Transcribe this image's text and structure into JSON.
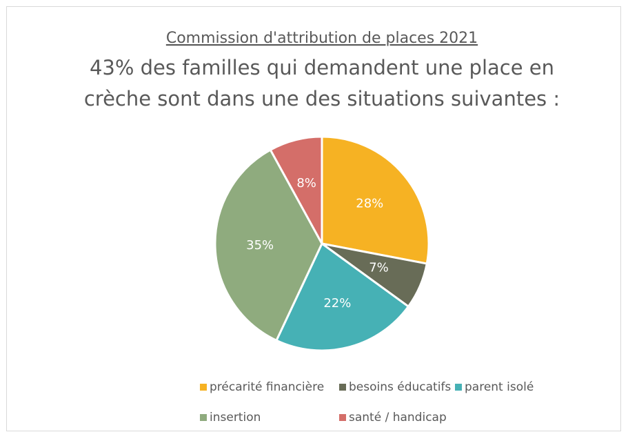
{
  "chart_data": {
    "type": "pie",
    "title": "Commission d'attribution de places 2021",
    "subtitle": [
      "43% des familles qui demandent une place en",
      "crèche sont dans une des situations suivantes :"
    ],
    "categories": [
      "précarité financière",
      "besoins éducatifs",
      "parent isolé",
      "insertion",
      "santé / handicap"
    ],
    "values": [
      28,
      7,
      22,
      35,
      8
    ],
    "value_labels": [
      "28%",
      "7%",
      "22%",
      "35%",
      "8%"
    ],
    "colors": [
      "#F6B223",
      "#686C57",
      "#46B1B5",
      "#8FAB7E",
      "#D46E69"
    ]
  }
}
